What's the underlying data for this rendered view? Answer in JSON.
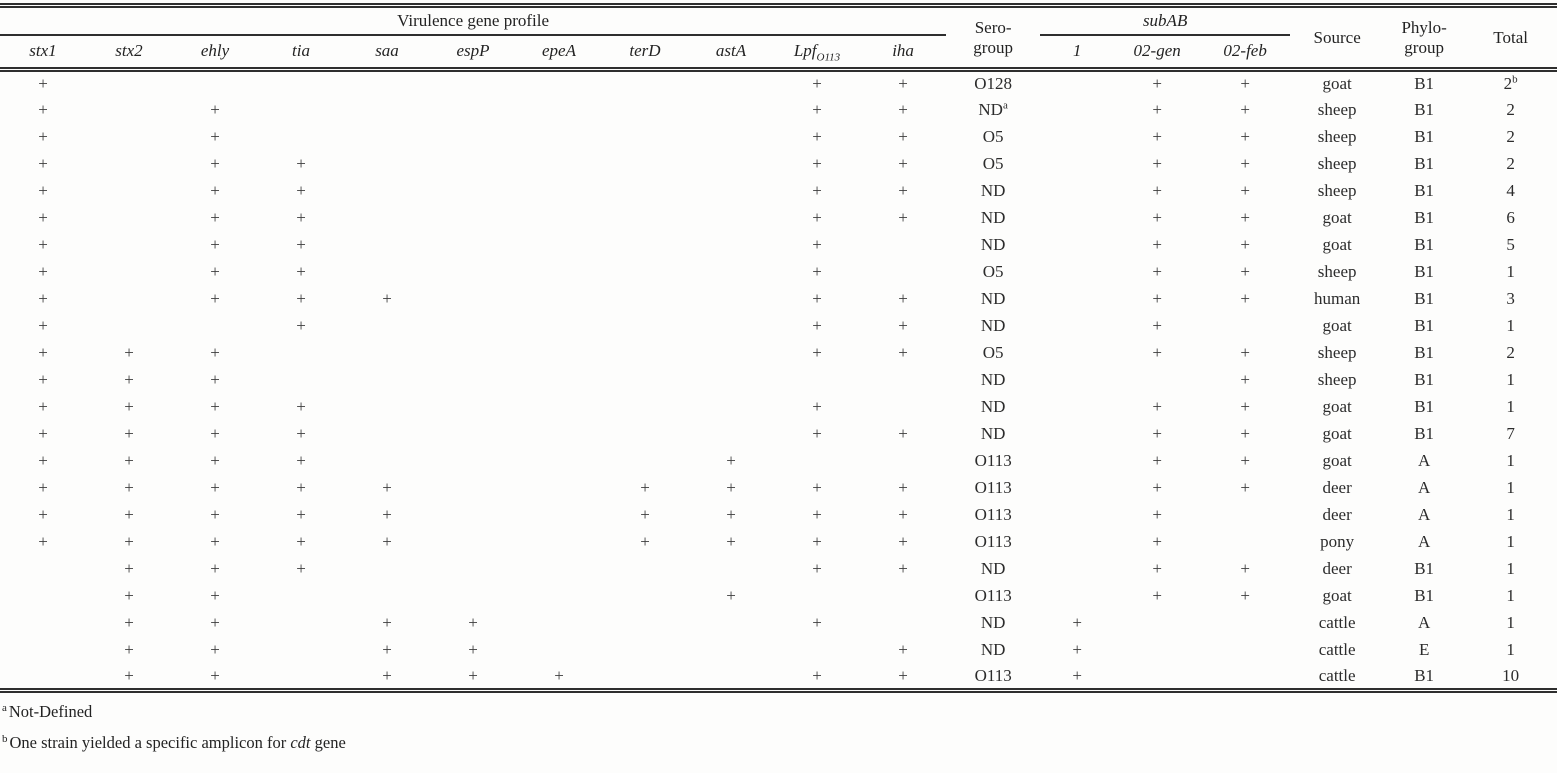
{
  "table": {
    "header": {
      "virulence_group": "Virulence gene profile",
      "serogroup": {
        "line1": "Sero-",
        "line2": "group"
      },
      "subab_group": "subAB",
      "source": "Source",
      "phylogroup": {
        "line1": "Phylo-",
        "line2": "group"
      },
      "total": "Total",
      "genes": [
        {
          "label": "stx1"
        },
        {
          "label": "stx2"
        },
        {
          "label": "ehly"
        },
        {
          "label": "tia"
        },
        {
          "label": "saa"
        },
        {
          "label": "espP"
        },
        {
          "label": "epeA"
        },
        {
          "label": "terD"
        },
        {
          "label": "astA"
        },
        {
          "label": "Lpf",
          "sub": "O113"
        },
        {
          "label": "iha"
        }
      ],
      "subab_cols": [
        "1",
        "02-gen",
        "02-feb"
      ]
    },
    "rows": [
      {
        "genes": [
          "+",
          "",
          "",
          "",
          "",
          "",
          "",
          "",
          "",
          "+",
          "+"
        ],
        "serogroup": "O128",
        "subab": [
          "",
          "+",
          "+"
        ],
        "source": "goat",
        "phylo": "B1",
        "total": "2^b"
      },
      {
        "genes": [
          "+",
          "",
          "+",
          "",
          "",
          "",
          "",
          "",
          "",
          "+",
          "+"
        ],
        "serogroup": "ND^a",
        "subab": [
          "",
          "+",
          "+"
        ],
        "source": "sheep",
        "phylo": "B1",
        "total": "2"
      },
      {
        "genes": [
          "+",
          "",
          "+",
          "",
          "",
          "",
          "",
          "",
          "",
          "+",
          "+"
        ],
        "serogroup": "O5",
        "subab": [
          "",
          "+",
          "+"
        ],
        "source": "sheep",
        "phylo": "B1",
        "total": "2"
      },
      {
        "genes": [
          "+",
          "",
          "+",
          "+",
          "",
          "",
          "",
          "",
          "",
          "+",
          "+"
        ],
        "serogroup": "O5",
        "subab": [
          "",
          "+",
          "+"
        ],
        "source": "sheep",
        "phylo": "B1",
        "total": "2"
      },
      {
        "genes": [
          "+",
          "",
          "+",
          "+",
          "",
          "",
          "",
          "",
          "",
          "+",
          "+"
        ],
        "serogroup": "ND",
        "subab": [
          "",
          "+",
          "+"
        ],
        "source": "sheep",
        "phylo": "B1",
        "total": "4"
      },
      {
        "genes": [
          "+",
          "",
          "+",
          "+",
          "",
          "",
          "",
          "",
          "",
          "+",
          "+"
        ],
        "serogroup": "ND",
        "subab": [
          "",
          "+",
          "+"
        ],
        "source": "goat",
        "phylo": "B1",
        "total": "6"
      },
      {
        "genes": [
          "+",
          "",
          "+",
          "+",
          "",
          "",
          "",
          "",
          "",
          "+",
          ""
        ],
        "serogroup": "ND",
        "subab": [
          "",
          "+",
          "+"
        ],
        "source": "goat",
        "phylo": "B1",
        "total": "5"
      },
      {
        "genes": [
          "+",
          "",
          "+",
          "+",
          "",
          "",
          "",
          "",
          "",
          "+",
          ""
        ],
        "serogroup": "O5",
        "subab": [
          "",
          "+",
          "+"
        ],
        "source": "sheep",
        "phylo": "B1",
        "total": "1"
      },
      {
        "genes": [
          "+",
          "",
          "+",
          "+",
          "+",
          "",
          "",
          "",
          "",
          "+",
          "+"
        ],
        "serogroup": "ND",
        "subab": [
          "",
          "+",
          "+"
        ],
        "source": "human",
        "phylo": "B1",
        "total": "3"
      },
      {
        "genes": [
          "+",
          "",
          "",
          "+",
          "",
          "",
          "",
          "",
          "",
          "+",
          "+"
        ],
        "serogroup": "ND",
        "subab": [
          "",
          "+",
          ""
        ],
        "source": "goat",
        "phylo": "B1",
        "total": "1"
      },
      {
        "genes": [
          "+",
          "+",
          "+",
          "",
          "",
          "",
          "",
          "",
          "",
          "+",
          "+"
        ],
        "serogroup": "O5",
        "subab": [
          "",
          "+",
          "+"
        ],
        "source": "sheep",
        "phylo": "B1",
        "total": "2"
      },
      {
        "genes": [
          "+",
          "+",
          "+",
          "",
          "",
          "",
          "",
          "",
          "",
          "",
          ""
        ],
        "serogroup": "ND",
        "subab": [
          "",
          "",
          "+"
        ],
        "source": "sheep",
        "phylo": "B1",
        "total": "1"
      },
      {
        "genes": [
          "+",
          "+",
          "+",
          "+",
          "",
          "",
          "",
          "",
          "",
          "+",
          ""
        ],
        "serogroup": "ND",
        "subab": [
          "",
          "+",
          "+"
        ],
        "source": "goat",
        "phylo": "B1",
        "total": "1"
      },
      {
        "genes": [
          "+",
          "+",
          "+",
          "+",
          "",
          "",
          "",
          "",
          "",
          "+",
          "+"
        ],
        "serogroup": "ND",
        "subab": [
          "",
          "+",
          "+"
        ],
        "source": "goat",
        "phylo": "B1",
        "total": "7"
      },
      {
        "genes": [
          "+",
          "+",
          "+",
          "+",
          "",
          "",
          "",
          "",
          "+",
          "",
          ""
        ],
        "serogroup": "O113",
        "subab": [
          "",
          "+",
          "+"
        ],
        "source": "goat",
        "phylo": "A",
        "total": "1"
      },
      {
        "genes": [
          "+",
          "+",
          "+",
          "+",
          "+",
          "",
          "",
          "+",
          "+",
          "+",
          "+"
        ],
        "serogroup": "O113",
        "subab": [
          "",
          "+",
          "+"
        ],
        "source": "deer",
        "phylo": "A",
        "total": "1"
      },
      {
        "genes": [
          "+",
          "+",
          "+",
          "+",
          "+",
          "",
          "",
          "+",
          "+",
          "+",
          "+"
        ],
        "serogroup": "O113",
        "subab": [
          "",
          "+",
          ""
        ],
        "source": "deer",
        "phylo": "A",
        "total": "1"
      },
      {
        "genes": [
          "+",
          "+",
          "+",
          "+",
          "+",
          "",
          "",
          "+",
          "+",
          "+",
          "+"
        ],
        "serogroup": "O113",
        "subab": [
          "",
          "+",
          ""
        ],
        "source": "pony",
        "phylo": "A",
        "total": "1"
      },
      {
        "genes": [
          "",
          "+",
          "+",
          "+",
          "",
          "",
          "",
          "",
          "",
          "+",
          "+"
        ],
        "serogroup": "ND",
        "subab": [
          "",
          "+",
          "+"
        ],
        "source": "deer",
        "phylo": "B1",
        "total": "1"
      },
      {
        "genes": [
          "",
          "+",
          "+",
          "",
          "",
          "",
          "",
          "",
          "+",
          "",
          ""
        ],
        "serogroup": "O113",
        "subab": [
          "",
          "+",
          "+"
        ],
        "source": "goat",
        "phylo": "B1",
        "total": "1"
      },
      {
        "genes": [
          "",
          "+",
          "+",
          "",
          "+",
          "+",
          "",
          "",
          "",
          "+",
          ""
        ],
        "serogroup": "ND",
        "subab": [
          "+",
          "",
          ""
        ],
        "source": "cattle",
        "phylo": "A",
        "total": "1"
      },
      {
        "genes": [
          "",
          "+",
          "+",
          "",
          "+",
          "+",
          "",
          "",
          "",
          "",
          "+"
        ],
        "serogroup": "ND",
        "subab": [
          "+",
          "",
          ""
        ],
        "source": "cattle",
        "phylo": "E",
        "total": "1"
      },
      {
        "genes": [
          "",
          "+",
          "+",
          "",
          "+",
          "+",
          "+",
          "",
          "",
          "+",
          "+"
        ],
        "serogroup": "O113",
        "subab": [
          "+",
          "",
          ""
        ],
        "source": "cattle",
        "phylo": "B1",
        "total": "10"
      }
    ]
  },
  "footnotes": [
    {
      "marker": "a",
      "pre": "Not-Defined",
      "italic": "",
      "post": ""
    },
    {
      "marker": "b",
      "pre": "One strain yielded a specific amplicon for ",
      "italic": "cdt",
      "post": " gene"
    }
  ],
  "colors": {
    "text": "#232323",
    "rule": "#2e2e2e"
  }
}
